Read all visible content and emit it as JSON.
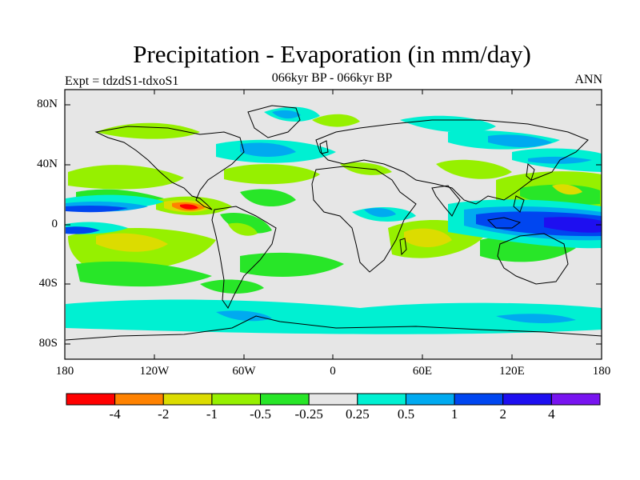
{
  "title": "Precipitation - Evaporation (in mm/day)",
  "experiment": "Expt = tdzdS1-tdxoS1",
  "period": "066kyr BP - 066kyr BP",
  "season": "ANN",
  "axes": {
    "y_ticks": [
      "80N",
      "40N",
      "0",
      "40S",
      "80S"
    ],
    "x_ticks": [
      "180",
      "120W",
      "60W",
      "0",
      "60E",
      "120E",
      "180"
    ]
  },
  "colorbar": {
    "labels": [
      "-4",
      "-2",
      "-1",
      "-0.5",
      "-0.25",
      "0.25",
      "0.5",
      "1",
      "2",
      "4"
    ],
    "colors": [
      "#ff0000",
      "#ff8200",
      "#dcdc00",
      "#96f000",
      "#28e628",
      "#e6e6e6",
      "#00f0d2",
      "#00aaf0",
      "#0046f0",
      "#1e0ff0",
      "#7814f0"
    ]
  },
  "map_layers": [
    {
      "name": "light-green-region",
      "color": "#96f000"
    },
    {
      "name": "green-region",
      "color": "#28e628"
    },
    {
      "name": "yellow-region",
      "color": "#dcdc00"
    },
    {
      "name": "orange-region",
      "color": "#ff8200"
    },
    {
      "name": "red-region",
      "color": "#ff0000"
    },
    {
      "name": "cyan-region",
      "color": "#00f0d2"
    },
    {
      "name": "light-blue-region",
      "color": "#00aaf0"
    },
    {
      "name": "blue-region",
      "color": "#0046f0"
    },
    {
      "name": "dark-blue-region",
      "color": "#1e0ff0"
    },
    {
      "name": "continent-outline",
      "color": "#000000"
    }
  ]
}
